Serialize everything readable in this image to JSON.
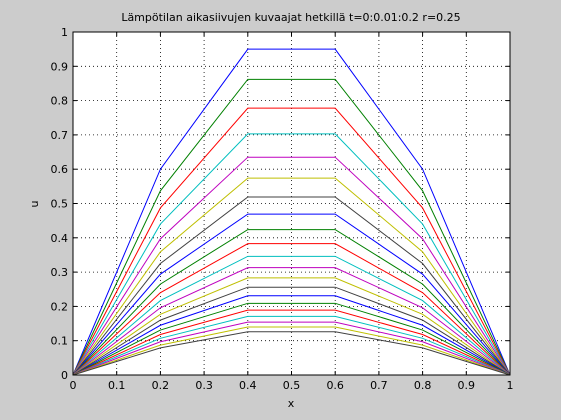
{
  "chart_data": {
    "type": "line",
    "title": "Lämpötilan aikasiivujen kuvaajat hetkillä t=0:0.01:0.2 r=0.25",
    "xlabel": "x",
    "ylabel": "u",
    "xlim": [
      0,
      1
    ],
    "ylim": [
      0,
      1
    ],
    "x": [
      0,
      0.2,
      0.4,
      0.6,
      0.8,
      1.0
    ],
    "x_ticks": [
      "0",
      "0.1",
      "0.2",
      "0.3",
      "0.4",
      "0.5",
      "0.6",
      "0.7",
      "0.8",
      "0.9",
      "1"
    ],
    "y_ticks": [
      "0",
      "0.1",
      "0.2",
      "0.3",
      "0.4",
      "0.5",
      "0.6",
      "0.7",
      "0.8",
      "0.9",
      "1"
    ],
    "grid": "dotted",
    "series": [
      {
        "values": [
          0,
          0.6,
          0.95,
          0.95,
          0.6,
          0
        ],
        "color": "#0000ff"
      },
      {
        "values": [
          0,
          0.537,
          0.862,
          0.862,
          0.537,
          0
        ],
        "color": "#008000"
      },
      {
        "values": [
          0,
          0.487,
          0.778,
          0.778,
          0.487,
          0
        ],
        "color": "#ff0000"
      },
      {
        "values": [
          0,
          0.44,
          0.703,
          0.703,
          0.44,
          0
        ],
        "color": "#00bfbf"
      },
      {
        "values": [
          0,
          0.397,
          0.635,
          0.635,
          0.397,
          0
        ],
        "color": "#bf00bf"
      },
      {
        "values": [
          0,
          0.359,
          0.574,
          0.574,
          0.359,
          0
        ],
        "color": "#bfbf00"
      },
      {
        "values": [
          0,
          0.325,
          0.519,
          0.519,
          0.325,
          0
        ],
        "color": "#404040"
      },
      {
        "values": [
          0,
          0.294,
          0.469,
          0.469,
          0.294,
          0
        ],
        "color": "#0000ff"
      },
      {
        "values": [
          0,
          0.265,
          0.424,
          0.424,
          0.265,
          0
        ],
        "color": "#008000"
      },
      {
        "values": [
          0,
          0.24,
          0.383,
          0.383,
          0.24,
          0
        ],
        "color": "#ff0000"
      },
      {
        "values": [
          0,
          0.217,
          0.346,
          0.346,
          0.217,
          0
        ],
        "color": "#00bfbf"
      },
      {
        "values": [
          0,
          0.196,
          0.313,
          0.313,
          0.196,
          0
        ],
        "color": "#bf00bf"
      },
      {
        "values": [
          0,
          0.177,
          0.283,
          0.283,
          0.177,
          0
        ],
        "color": "#bfbf00"
      },
      {
        "values": [
          0,
          0.16,
          0.256,
          0.256,
          0.16,
          0
        ],
        "color": "#404040"
      },
      {
        "values": [
          0,
          0.145,
          0.231,
          0.231,
          0.145,
          0
        ],
        "color": "#0000ff"
      },
      {
        "values": [
          0,
          0.131,
          0.209,
          0.209,
          0.131,
          0
        ],
        "color": "#008000"
      },
      {
        "values": [
          0,
          0.118,
          0.189,
          0.189,
          0.118,
          0
        ],
        "color": "#ff0000"
      },
      {
        "values": [
          0,
          0.107,
          0.171,
          0.171,
          0.107,
          0
        ],
        "color": "#00bfbf"
      },
      {
        "values": [
          0,
          0.097,
          0.154,
          0.154,
          0.097,
          0
        ],
        "color": "#bf00bf"
      },
      {
        "values": [
          0,
          0.087,
          0.14,
          0.14,
          0.087,
          0
        ],
        "color": "#bfbf00"
      },
      {
        "values": [
          0,
          0.079,
          0.126,
          0.126,
          0.079,
          0
        ],
        "color": "#404040"
      }
    ]
  }
}
